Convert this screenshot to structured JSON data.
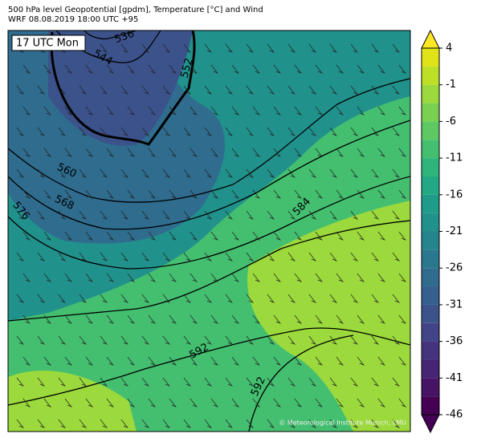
{
  "header": {
    "title": "500 hPa level Geopotential [gpdm], Temperature [°C] and Wind",
    "subtitle": "WRF 08.08.2019 18:00 UTC +95"
  },
  "map": {
    "time_label": "17 UTC Mon",
    "contour_labels": [
      "536",
      "544",
      "552",
      "560",
      "568",
      "576",
      "584",
      "592",
      "592"
    ],
    "copyright": "© Meteorological Institute Munich, LMU"
  },
  "colorbar": {
    "lim": [
      -46,
      4
    ],
    "ticks": [
      4,
      -1,
      -6,
      -11,
      -16,
      -21,
      -26,
      -31,
      -36,
      -41,
      -46
    ],
    "colors": [
      "#440154",
      "#471365",
      "#482475",
      "#46337e",
      "#414487",
      "#3b528b",
      "#355f8d",
      "#2f6c8e",
      "#2a788e",
      "#25848e",
      "#21918c",
      "#1e9c89",
      "#22a884",
      "#2fb47c",
      "#44bf70",
      "#5ec962",
      "#7ad151",
      "#9bd93c",
      "#bddf26",
      "#dfe318"
    ],
    "under_color": "#440154",
    "over_color": "#fde725"
  }
}
